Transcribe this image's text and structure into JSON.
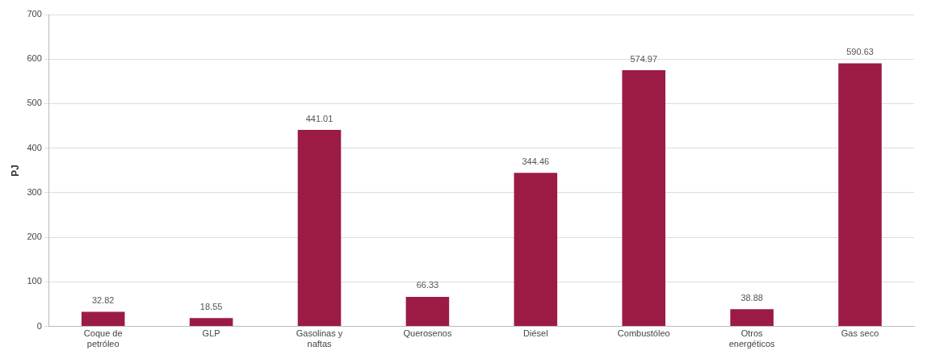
{
  "chart_data": {
    "type": "bar",
    "ylabel": "PJ",
    "categories": [
      "Coque de petróleo",
      "GLP",
      "Gasolinas y naftas",
      "Querosenos",
      "Diésel",
      "Combustóleo",
      "Otros energéticos",
      "Gas seco"
    ],
    "values": [
      32.82,
      18.55,
      441.01,
      66.33,
      344.46,
      574.97,
      38.88,
      590.63
    ],
    "color": "#9b1b45",
    "ylim": [
      0,
      700
    ],
    "yticks": [
      0,
      100,
      200,
      300,
      400,
      500,
      600,
      700
    ],
    "grid": "y",
    "data_labels": true
  }
}
